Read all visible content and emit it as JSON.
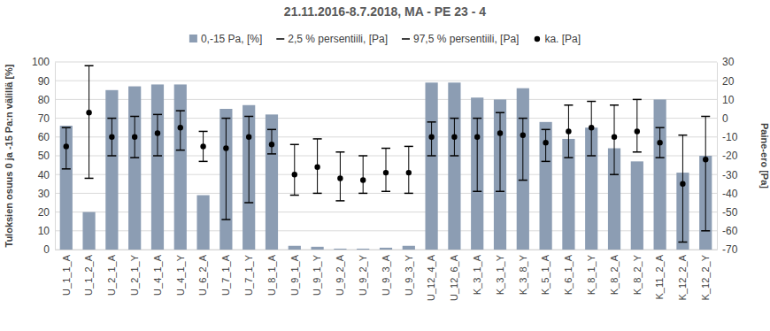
{
  "chart_data": {
    "type": "bar",
    "title": "21.11.2016-8.7.2018, MA - PE 23 - 4",
    "y_label": "Tuloksien osuus 0 ja -15 Pa:n välillä [%]",
    "y2_label": "Paine-ero [Pa]",
    "categories": [
      "U_1_1_A",
      "U_1_2_A",
      "U_2_1_A",
      "U_2_1_Y",
      "U_4_1_A",
      "U_4_1_Y",
      "U_6_2_A",
      "U_7_1_A",
      "U_7_1_Y",
      "U_8_1_A",
      "U_9_1_A",
      "U_9_1_Y",
      "U_9_2_A",
      "U_9_2_Y",
      "U_9_3_A",
      "U_9_3_Y",
      "U_12_4_A",
      "U_12_6_A",
      "K_3_1_A",
      "K_3_1_Y",
      "K_3_8_Y",
      "K_5_1_A",
      "K_6_1_A",
      "K_8_1_Y",
      "K_8_2_A",
      "K_8_2_Y",
      "K_11_2_A",
      "K_12_2_A",
      "K_12_2_Y"
    ],
    "series": [
      {
        "name": "0,-15 Pa, [%]",
        "type": "bar",
        "color": "#8c9db3",
        "values": [
          66,
          20,
          85,
          87,
          88,
          88,
          29,
          75,
          77,
          72,
          2,
          1.5,
          0.5,
          0.5,
          1,
          2,
          89,
          89,
          81,
          80,
          86,
          68,
          59,
          65,
          54,
          47,
          80,
          41,
          50
        ]
      },
      {
        "name": "2,5 % persentiili, [Pa]",
        "type": "scatter",
        "marker": "dash",
        "color": "#000000",
        "axis": "y2",
        "values": [
          -27,
          -32,
          -20,
          -21,
          -20,
          -17,
          -23,
          -54,
          -45,
          -19,
          -41,
          -40,
          -44,
          -40,
          -39,
          -40,
          -20,
          -20,
          -39,
          -39,
          -33,
          -23,
          -21,
          -20,
          -30,
          -18,
          -21,
          -66,
          -60
        ]
      },
      {
        "name": "97,5 % persentiili, [Pa]",
        "type": "scatter",
        "marker": "dash",
        "color": "#000000",
        "axis": "y2",
        "values": [
          -5,
          28,
          0,
          1,
          2,
          4,
          -7,
          0,
          1,
          -6,
          -14,
          -11,
          -18,
          -20,
          -16,
          -15,
          -2,
          0,
          0,
          3,
          0,
          -6,
          7,
          9,
          7,
          10,
          -5,
          -9,
          1
        ]
      },
      {
        "name": "ka. [Pa]",
        "type": "scatter",
        "marker": "circle",
        "color": "#000000",
        "axis": "y2",
        "values": [
          -15,
          3,
          -10,
          -10,
          -8,
          -5,
          -15,
          -16,
          -10,
          -14,
          -30,
          -26,
          -32,
          -33,
          -29,
          -29,
          -10,
          -10,
          -10,
          -8,
          -9,
          -13,
          -7,
          -5,
          -10,
          -7,
          -13,
          -35,
          -22
        ]
      }
    ],
    "ylim": [
      0,
      100
    ],
    "yticks": [
      0,
      10,
      20,
      30,
      40,
      50,
      60,
      70,
      80,
      90,
      100
    ],
    "y2lim": [
      -70,
      30
    ],
    "y2ticks": [
      -70,
      -60,
      -50,
      -40,
      -30,
      -20,
      -10,
      0,
      10,
      20,
      30
    ],
    "grid": true,
    "legend": "top"
  }
}
